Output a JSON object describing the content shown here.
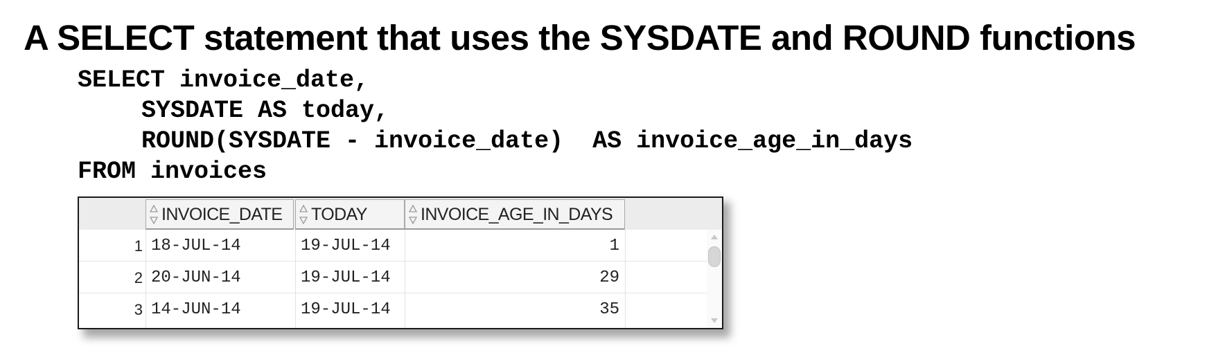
{
  "slide": {
    "title": "A SELECT statement that uses the SYSDATE and ROUND functions"
  },
  "code": {
    "lines": [
      "SELECT invoice_date,",
      "SYSDATE AS today,",
      "ROUND(SYSDATE - invoice_date)  AS invoice_age_in_days",
      "FROM invoices"
    ]
  },
  "result_grid": {
    "columns": [
      "INVOICE_DATE",
      "TODAY",
      "INVOICE_AGE_IN_DAYS"
    ],
    "rows": [
      {
        "num": "1",
        "invoice_date": "18-JUL-14",
        "today": "19-JUL-14",
        "invoice_age_in_days": "1"
      },
      {
        "num": "2",
        "invoice_date": "20-JUN-14",
        "today": "19-JUL-14",
        "invoice_age_in_days": "29"
      },
      {
        "num": "3",
        "invoice_date": "14-JUN-14",
        "today": "19-JUL-14",
        "invoice_age_in_days": "35"
      }
    ],
    "icons": {
      "column_header": "sort-arrows-icon",
      "scroll_up": "scroll-up-arrow-icon",
      "scroll_down": "scroll-down-arrow-icon"
    }
  }
}
